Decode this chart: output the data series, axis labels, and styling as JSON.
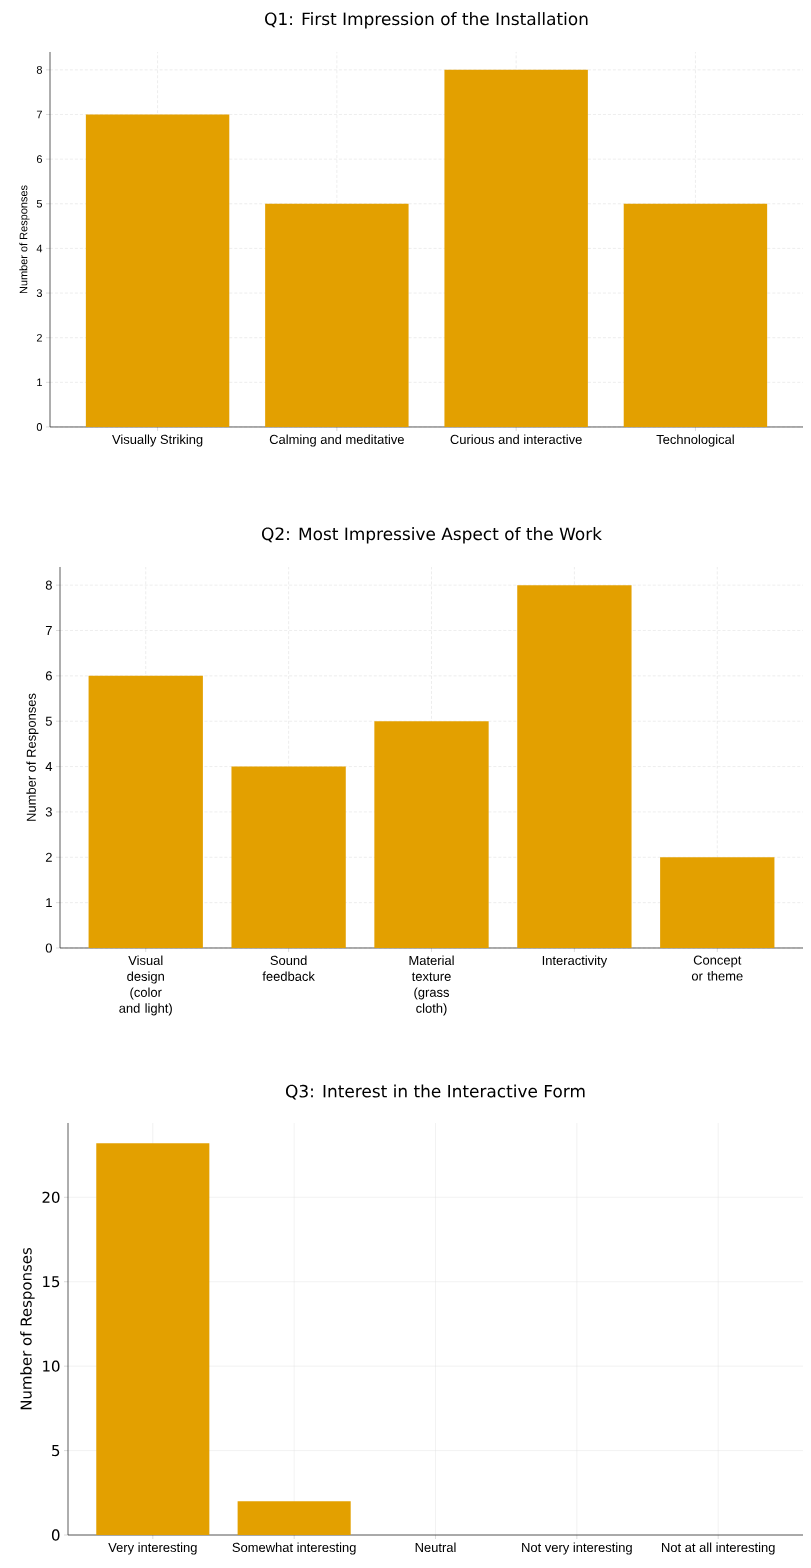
{
  "chart_data": [
    {
      "type": "bar",
      "title": "Q1: First Impression of the Installation",
      "ylabel": "Number of Responses",
      "categories": [
        "Visually Striking",
        "Calming and meditative",
        "Curious and interactive",
        "Technological"
      ],
      "values": [
        7,
        5,
        8,
        5
      ],
      "color": "#e3a000",
      "ylim": [
        0,
        8.4
      ],
      "yticks": [
        0,
        1,
        2,
        3,
        4,
        5,
        6,
        7,
        8
      ],
      "grid": true
    },
    {
      "type": "bar",
      "title": "Q2: Most Impressive Aspect of the Work",
      "ylabel": "Number of Responses",
      "categories": [
        "Visual design (color and light)",
        "Sound feedback",
        "Material texture (grass cloth)",
        "Interactivity",
        "Concept or theme"
      ],
      "values": [
        6,
        4,
        5,
        8,
        2
      ],
      "color": "#e3a000",
      "ylim": [
        0,
        8.4
      ],
      "yticks": [
        0,
        1,
        2,
        3,
        4,
        5,
        6,
        7,
        8
      ],
      "grid": true
    },
    {
      "type": "bar",
      "title": "Q3: Interest in the Interactive Form",
      "ylabel": "Number of Responses",
      "categories": [
        "Very interesting",
        "Somewhat interesting",
        "Neutral",
        "Not very interesting",
        "Not at all interesting"
      ],
      "values": [
        23.2,
        2,
        0,
        0,
        0
      ],
      "color": "#e3a000",
      "ylim": [
        0,
        24.4
      ],
      "yticks": [
        0,
        5,
        10,
        15,
        20
      ],
      "grid": true
    }
  ]
}
